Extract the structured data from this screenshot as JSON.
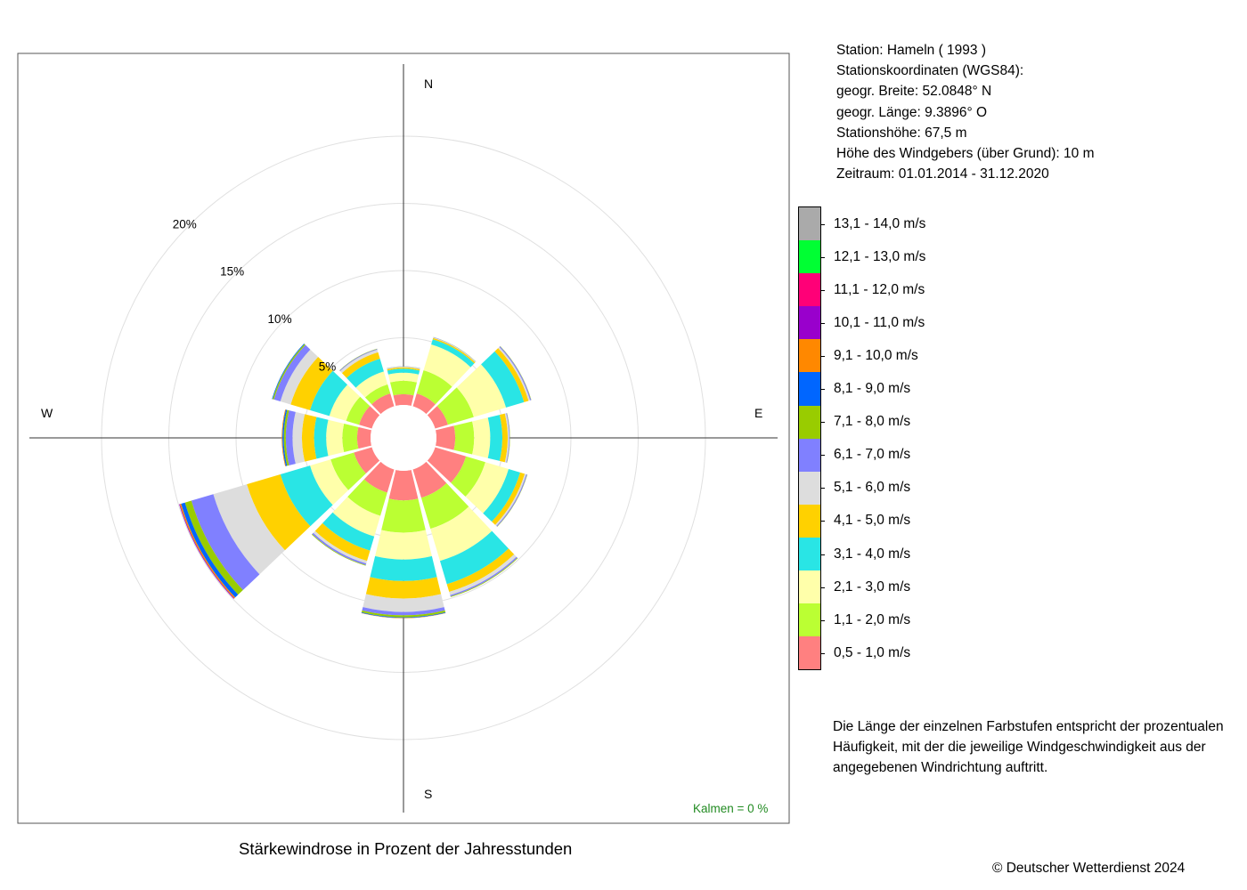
{
  "chart_data": {
    "type": "wind-rose",
    "title": "Stärkewindrose in Prozent der Jahresstunden",
    "directions": [
      "N",
      "30°",
      "60°",
      "E",
      "120°",
      "150°",
      "S",
      "210°",
      "240°",
      "W",
      "300°",
      "330°"
    ],
    "compass_labels": {
      "north": "N",
      "east": "E",
      "south": "S",
      "west": "W"
    },
    "ring_labels": [
      "5%",
      "10%",
      "15%",
      "20%"
    ],
    "rings": [
      5,
      10,
      15,
      20
    ],
    "calms_label": "Kalmen  =  0 %",
    "speed_classes": [
      {
        "label": "0,5 - 1,0 m/s",
        "color": "#FF8080"
      },
      {
        "label": "1,1 - 2,0 m/s",
        "color": "#BBFF33"
      },
      {
        "label": "2,1 - 3,0 m/s",
        "color": "#FFFFAA"
      },
      {
        "label": "3,1 - 4,0 m/s",
        "color": "#29E5E5"
      },
      {
        "label": "4,1 - 5,0 m/s",
        "color": "#FFD100"
      },
      {
        "label": "5,1 - 6,0 m/s",
        "color": "#DDDDDD"
      },
      {
        "label": "6,1 - 7,0 m/s",
        "color": "#8080FF"
      },
      {
        "label": "7,1 - 8,0 m/s",
        "color": "#99CC00"
      },
      {
        "label": "8,1 - 9,0 m/s",
        "color": "#0066FF"
      },
      {
        "label": "9,1 - 10,0 m/s",
        "color": "#FF8800"
      },
      {
        "label": "10,1 - 11,0 m/s",
        "color": "#9900CC"
      },
      {
        "label": "11,1 - 12,0 m/s",
        "color": "#FF0077"
      },
      {
        "label": "12,1 - 13,0 m/s",
        "color": "#00FF33"
      },
      {
        "label": "13,1 - 14,0 m/s",
        "color": "#AAAAAA"
      }
    ],
    "series": [
      {
        "direction": "N",
        "values": [
          0.8,
          1.0,
          0.6,
          0.3,
          0.1,
          0.05,
          0.02,
          0.01,
          0,
          0,
          0,
          0,
          0,
          0
        ]
      },
      {
        "direction": "30°",
        "values": [
          1.0,
          1.8,
          2.0,
          0.4,
          0.1,
          0.05,
          0.02,
          0.01,
          0,
          0,
          0,
          0,
          0,
          0
        ]
      },
      {
        "direction": "60°",
        "values": [
          1.0,
          2.0,
          2.5,
          1.4,
          0.35,
          0.12,
          0.08,
          0.02,
          0,
          0,
          0,
          0,
          0,
          0
        ]
      },
      {
        "direction": "E",
        "values": [
          1.4,
          1.4,
          1.2,
          0.9,
          0.4,
          0.1,
          0.05,
          0.02,
          0,
          0,
          0,
          0,
          0,
          0
        ]
      },
      {
        "direction": "120°",
        "values": [
          2.4,
          1.5,
          1.8,
          0.9,
          0.35,
          0.12,
          0.07,
          0.02,
          0,
          0,
          0,
          0,
          0,
          0
        ]
      },
      {
        "direction": "150°",
        "values": [
          2.2,
          2.4,
          2.5,
          1.8,
          0.6,
          0.25,
          0.1,
          0.05,
          0,
          0,
          0,
          0,
          0,
          0
        ]
      },
      {
        "direction": "S",
        "values": [
          2.2,
          2.4,
          2.0,
          1.6,
          1.3,
          1.0,
          0.25,
          0.15,
          0.05,
          0.02,
          0,
          0,
          0,
          0
        ]
      },
      {
        "direction": "210°",
        "values": [
          1.8,
          1.8,
          1.6,
          1.1,
          0.8,
          0.2,
          0.12,
          0.05,
          0,
          0,
          0,
          0,
          0,
          0
        ]
      },
      {
        "direction": "240°",
        "values": [
          1.4,
          1.8,
          1.6,
          2.3,
          2.6,
          2.6,
          1.7,
          0.5,
          0.3,
          0.1,
          0.05,
          0,
          0,
          0
        ]
      },
      {
        "direction": "W",
        "values": [
          1.0,
          1.1,
          1.2,
          0.9,
          0.9,
          0.7,
          0.5,
          0.15,
          0.1,
          0.05,
          0,
          0,
          0,
          0
        ]
      },
      {
        "direction": "300°",
        "values": [
          1.0,
          1.0,
          1.3,
          1.5,
          1.5,
          0.8,
          0.5,
          0.1,
          0.05,
          0,
          0,
          0,
          0,
          0
        ]
      },
      {
        "direction": "330°",
        "values": [
          1.0,
          0.7,
          1.0,
          1.0,
          0.5,
          0.2,
          0.05,
          0.02,
          0,
          0,
          0,
          0,
          0,
          0
        ]
      }
    ]
  },
  "station_info": [
    "Station:  Hameln  ( 1993 )",
    "Stationskoordinaten (WGS84):",
    "geogr. Breite: 52.0848° N",
    "geogr. Länge:   9.3896° O",
    "Stationshöhe: 67,5 m",
    "Höhe des Windgebers (über Grund): 10 m",
    "Zeitraum: 01.01.2014 - 31.12.2020"
  ],
  "note": [
    "Die Länge der einzelnen Farbstufen entspricht der prozentualen",
    "Häufigkeit, mit der die jeweilige Windgeschwindigkeit aus der",
    "angegebenen Windrichtung auftritt."
  ],
  "copyright": "© Deutscher Wetterdienst  2024"
}
